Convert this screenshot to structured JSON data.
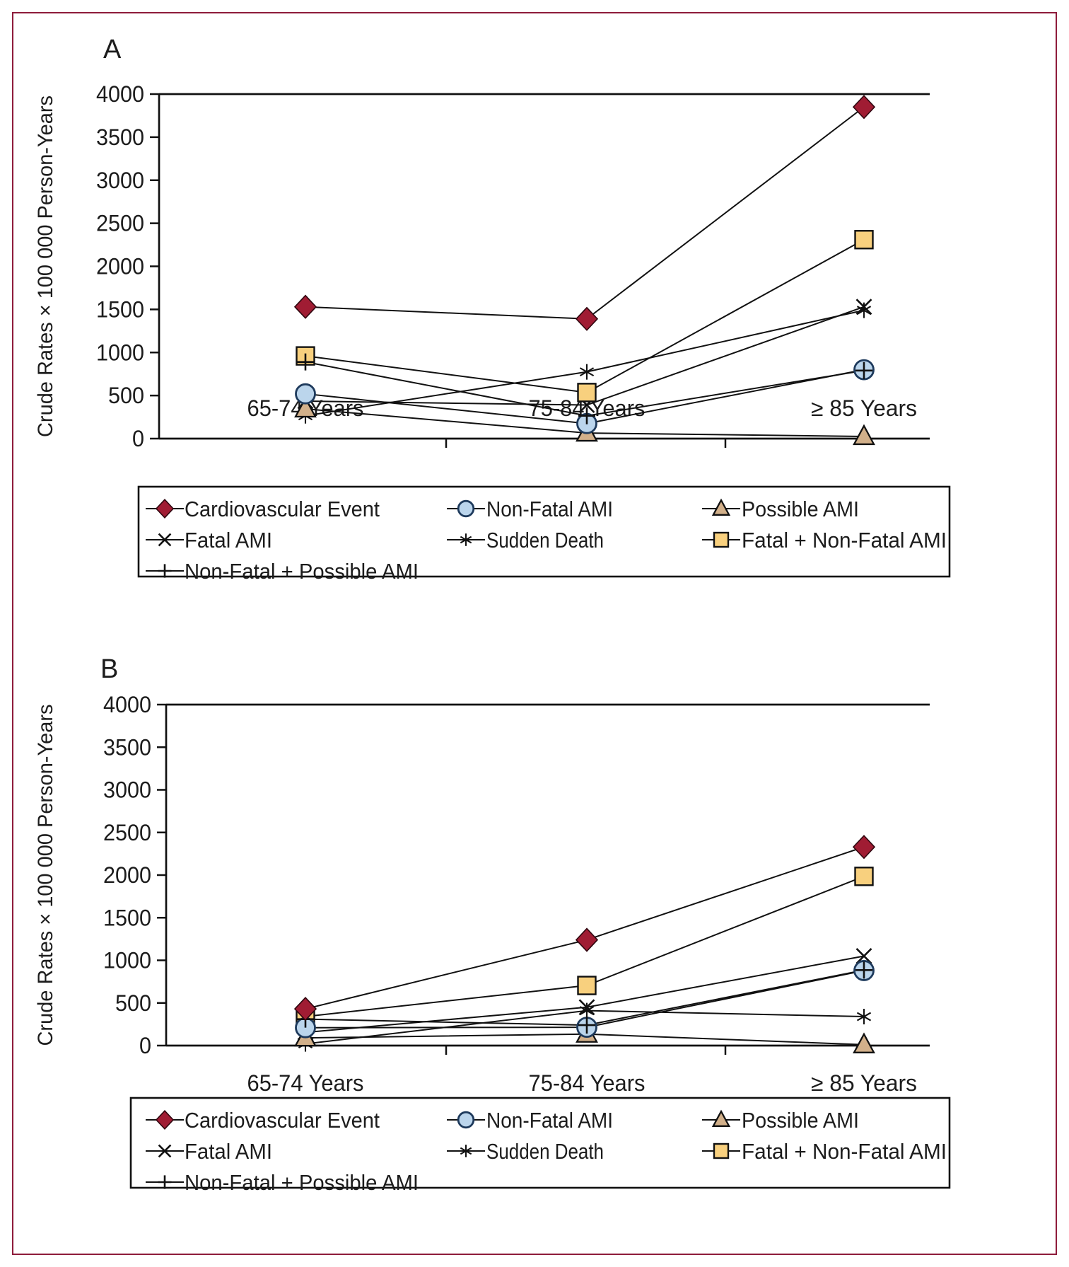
{
  "figure": {
    "frame_color": "#8E1C3B",
    "panels": [
      "A",
      "B"
    ]
  },
  "colors": {
    "diamond_fill": "#A01C33",
    "square_fill": "#F8D07E",
    "circle_fill": "#BBD5EC",
    "circle_stroke": "#1E3A5C",
    "triangle_fill": "#D2B08A",
    "line": "#111111",
    "frame": "#8E1C3B"
  },
  "chart_data": [
    {
      "type": "line",
      "title": "A",
      "categories": [
        "65-74 Years",
        "75-84 Years",
        "≥ 85 Years"
      ],
      "ylabel": "Crude Rates × 100 000 Person-Years",
      "ylim": [
        0,
        4000
      ],
      "ytick_step": 500,
      "grid": false,
      "legend_position": "bottom-box",
      "series": [
        {
          "name": "Cardiovascular Event",
          "marker": "diamond",
          "values": [
            1530,
            1390,
            3850
          ]
        },
        {
          "name": "Non-Fatal AMI",
          "marker": "circle",
          "values": [
            520,
            175,
            800
          ]
        },
        {
          "name": "Possible AMI",
          "marker": "triangle",
          "values": [
            345,
            65,
            25
          ]
        },
        {
          "name": "Fatal AMI",
          "marker": "x",
          "values": [
            435,
            390,
            1530
          ]
        },
        {
          "name": "Sudden Death",
          "marker": "star",
          "values": [
            265,
            775,
            1490
          ]
        },
        {
          "name": "Fatal + Non-Fatal AMI",
          "marker": "square",
          "values": [
            960,
            535,
            2310
          ]
        },
        {
          "name": "Non-Fatal + Possible AMI",
          "marker": "plus",
          "values": [
            890,
            265,
            790
          ]
        }
      ]
    },
    {
      "type": "line",
      "title": "B",
      "categories": [
        "65-74 Years",
        "75-84 Years",
        "≥ 85 Years"
      ],
      "ylabel": "Crude Rates × 100 000 Person-Years",
      "ylim": [
        0,
        4000
      ],
      "ytick_step": 500,
      "grid": false,
      "legend_position": "bottom-box",
      "series": [
        {
          "name": "Cardiovascular Event",
          "marker": "diamond",
          "values": [
            430,
            1240,
            2330
          ]
        },
        {
          "name": "Non-Fatal AMI",
          "marker": "circle",
          "values": [
            210,
            215,
            880
          ]
        },
        {
          "name": "Possible AMI",
          "marker": "triangle",
          "values": [
            90,
            135,
            10
          ]
        },
        {
          "name": "Fatal AMI",
          "marker": "x",
          "values": [
            155,
            450,
            1050
          ]
        },
        {
          "name": "Sudden Death",
          "marker": "star",
          "values": [
            20,
            410,
            340
          ]
        },
        {
          "name": "Fatal + Non-Fatal AMI",
          "marker": "square",
          "values": [
            340,
            705,
            1985
          ]
        },
        {
          "name": "Non-Fatal + Possible AMI",
          "marker": "plus",
          "values": [
            310,
            240,
            885
          ]
        }
      ]
    }
  ]
}
